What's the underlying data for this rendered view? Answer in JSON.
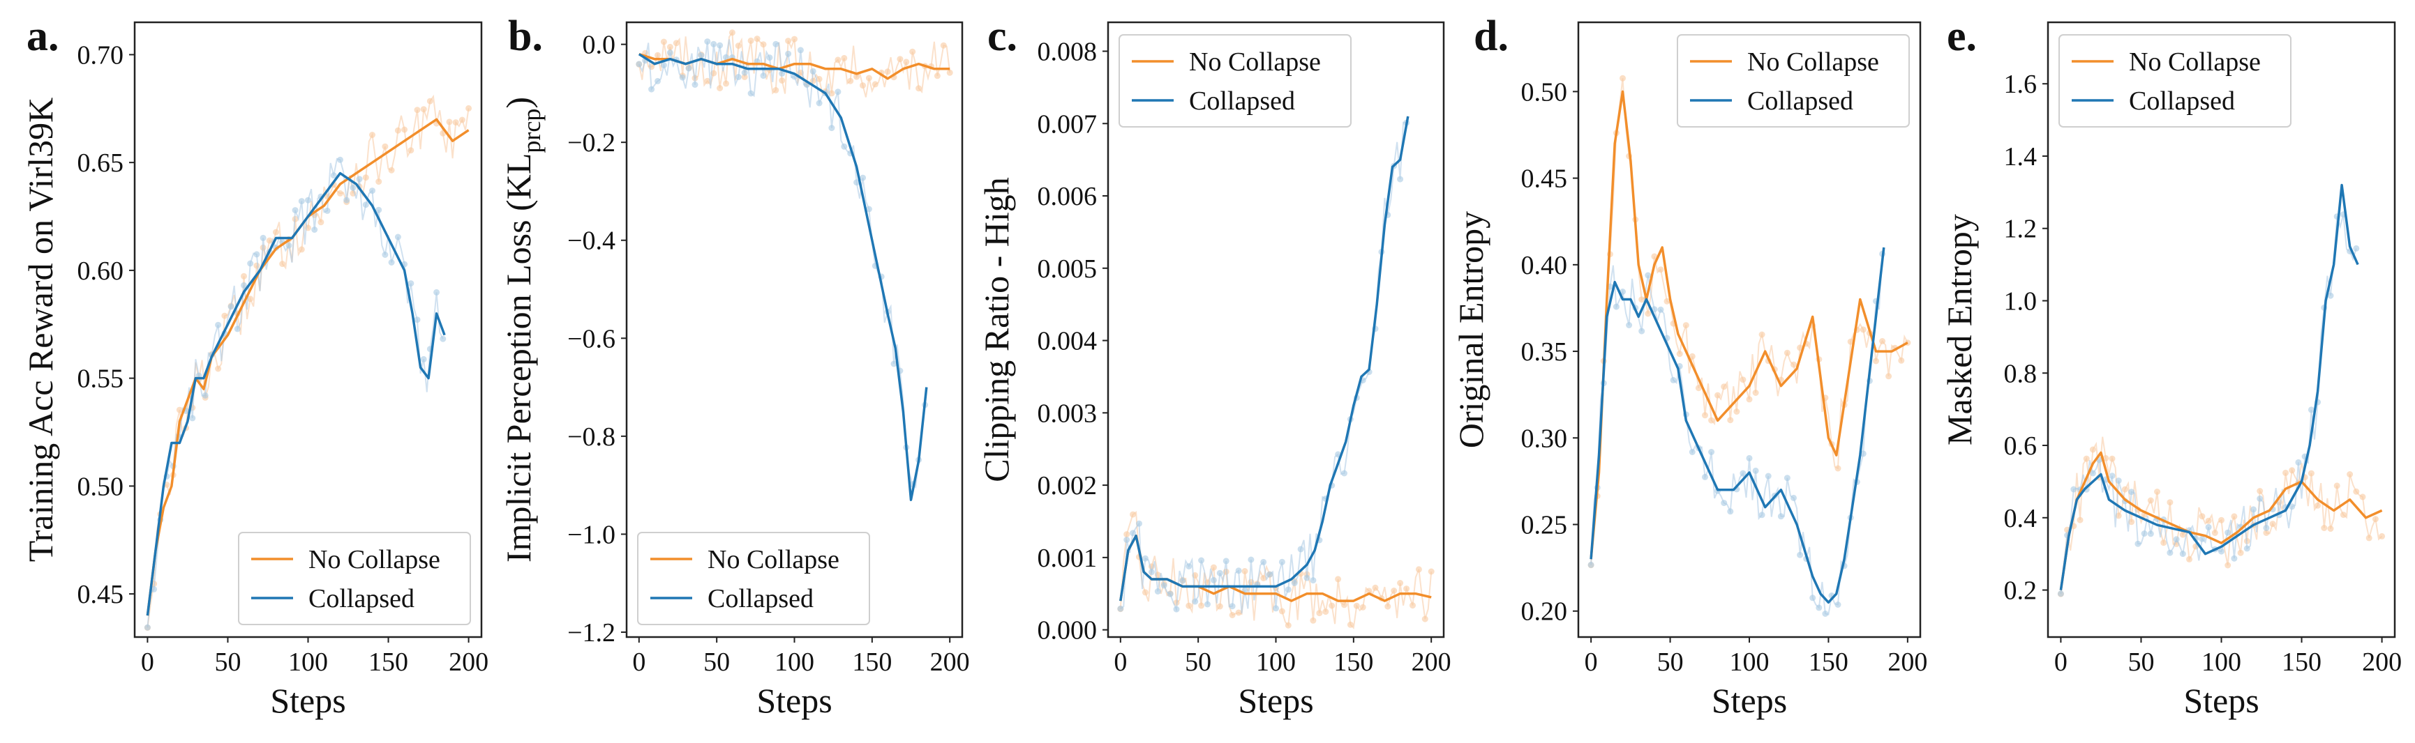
{
  "figure": {
    "panels": [
      "a.",
      "b.",
      "c.",
      "d.",
      "e."
    ]
  },
  "colors": {
    "no_collapse": "#F28E2B",
    "collapsed": "#1F77B4",
    "raw_no_collapse": "#F8C9A0",
    "raw_collapsed": "#A9C9E3"
  },
  "chart_data": [
    {
      "type": "line",
      "letter": "a.",
      "xlabel": "Steps",
      "ylabel": "Training Acc Reward on Virl39K",
      "xlim": [
        -8,
        208
      ],
      "ylim": [
        0.43,
        0.715
      ],
      "xticks": [
        0,
        50,
        100,
        150,
        200
      ],
      "xtick_labels": [
        "0",
        "50",
        "100",
        "150",
        "200"
      ],
      "yticks": [
        0.45,
        0.5,
        0.55,
        0.6,
        0.65,
        0.7
      ],
      "ytick_labels": [
        "0.45",
        "0.50",
        "0.55",
        "0.60",
        "0.65",
        "0.70"
      ],
      "legend_position": "lower-right",
      "series": [
        {
          "name": "No Collapse",
          "color": "#F28E2B",
          "x": [
            0,
            5,
            10,
            15,
            20,
            25,
            30,
            35,
            40,
            50,
            60,
            70,
            80,
            90,
            100,
            110,
            120,
            130,
            140,
            150,
            160,
            170,
            180,
            190,
            200
          ],
          "y": [
            0.44,
            0.47,
            0.49,
            0.5,
            0.53,
            0.54,
            0.55,
            0.545,
            0.56,
            0.57,
            0.585,
            0.6,
            0.61,
            0.615,
            0.625,
            0.63,
            0.64,
            0.645,
            0.65,
            0.655,
            0.66,
            0.665,
            0.67,
            0.66,
            0.665
          ]
        },
        {
          "name": "Collapsed",
          "color": "#1F77B4",
          "x": [
            0,
            5,
            10,
            15,
            20,
            25,
            30,
            35,
            40,
            50,
            60,
            70,
            80,
            90,
            100,
            110,
            120,
            130,
            140,
            150,
            160,
            165,
            170,
            175,
            180,
            185
          ],
          "y": [
            0.44,
            0.47,
            0.5,
            0.52,
            0.52,
            0.53,
            0.55,
            0.55,
            0.56,
            0.575,
            0.59,
            0.6,
            0.615,
            0.615,
            0.625,
            0.635,
            0.645,
            0.64,
            0.63,
            0.615,
            0.6,
            0.58,
            0.555,
            0.55,
            0.58,
            0.57
          ]
        }
      ]
    },
    {
      "type": "line",
      "letter": "b.",
      "xlabel": "Steps",
      "ylabel": "Implicit Perception Loss (KL",
      "ylabel_sub": "prcp",
      "ylabel_end": ")",
      "xlim": [
        -8,
        208
      ],
      "ylim": [
        -1.21,
        0.045
      ],
      "xticks": [
        0,
        50,
        100,
        150,
        200
      ],
      "xtick_labels": [
        "0",
        "50",
        "100",
        "150",
        "200"
      ],
      "yticks": [
        0.0,
        -0.2,
        -0.4,
        -0.6,
        -0.8,
        -1.0,
        -1.2
      ],
      "ytick_labels": [
        "0.0",
        "−0.2",
        "−0.4",
        "−0.6",
        "−0.8",
        "−1.0",
        "−1.2"
      ],
      "legend_position": "lower-left",
      "series": [
        {
          "name": "No Collapse",
          "color": "#F28E2B",
          "x": [
            0,
            10,
            20,
            30,
            40,
            50,
            60,
            70,
            80,
            90,
            100,
            110,
            120,
            130,
            140,
            150,
            160,
            170,
            180,
            190,
            200
          ],
          "y": [
            -0.02,
            -0.03,
            -0.03,
            -0.04,
            -0.03,
            -0.04,
            -0.03,
            -0.04,
            -0.04,
            -0.05,
            -0.04,
            -0.04,
            -0.05,
            -0.05,
            -0.06,
            -0.05,
            -0.07,
            -0.05,
            -0.04,
            -0.05,
            -0.05
          ]
        },
        {
          "name": "Collapsed",
          "color": "#1F77B4",
          "x": [
            0,
            10,
            20,
            30,
            40,
            50,
            60,
            70,
            80,
            90,
            100,
            110,
            120,
            130,
            140,
            150,
            160,
            165,
            170,
            175,
            180,
            185
          ],
          "y": [
            -0.02,
            -0.04,
            -0.03,
            -0.04,
            -0.03,
            -0.04,
            -0.04,
            -0.05,
            -0.05,
            -0.05,
            -0.06,
            -0.08,
            -0.1,
            -0.15,
            -0.25,
            -0.4,
            -0.55,
            -0.62,
            -0.75,
            -0.93,
            -0.85,
            -0.7
          ]
        }
      ]
    },
    {
      "type": "line",
      "letter": "c.",
      "xlabel": "Steps",
      "ylabel": "Clipping Ratio - High",
      "xlim": [
        -8,
        208
      ],
      "ylim": [
        -0.0001,
        0.0084
      ],
      "xticks": [
        0,
        50,
        100,
        150,
        200
      ],
      "xtick_labels": [
        "0",
        "50",
        "100",
        "150",
        "200"
      ],
      "yticks": [
        0.0,
        0.001,
        0.002,
        0.003,
        0.004,
        0.005,
        0.006,
        0.007,
        0.008
      ],
      "ytick_labels": [
        "0.000",
        "0.001",
        "0.002",
        "0.003",
        "0.004",
        "0.005",
        "0.006",
        "0.007",
        "0.008"
      ],
      "legend_position": "upper-left",
      "series": [
        {
          "name": "No Collapse",
          "color": "#F28E2B",
          "x": [
            0,
            5,
            10,
            15,
            20,
            30,
            40,
            50,
            60,
            70,
            80,
            90,
            100,
            110,
            120,
            130,
            140,
            150,
            160,
            170,
            180,
            190,
            200
          ],
          "y": [
            0.0004,
            0.0011,
            0.0013,
            0.0008,
            0.0007,
            0.0007,
            0.0006,
            0.0006,
            0.0005,
            0.0006,
            0.0005,
            0.0005,
            0.0005,
            0.0004,
            0.0005,
            0.0005,
            0.0004,
            0.0004,
            0.0005,
            0.0004,
            0.0005,
            0.0005,
            0.00045
          ]
        },
        {
          "name": "Collapsed",
          "color": "#1F77B4",
          "x": [
            0,
            5,
            10,
            15,
            20,
            30,
            40,
            50,
            60,
            70,
            80,
            90,
            100,
            110,
            120,
            125,
            130,
            135,
            140,
            145,
            150,
            155,
            160,
            165,
            170,
            175,
            180,
            185
          ],
          "y": [
            0.0004,
            0.0011,
            0.0013,
            0.0008,
            0.0007,
            0.0007,
            0.0006,
            0.0006,
            0.0006,
            0.0006,
            0.0006,
            0.0006,
            0.0006,
            0.0007,
            0.0009,
            0.0011,
            0.0015,
            0.002,
            0.0023,
            0.0026,
            0.0031,
            0.0035,
            0.0036,
            0.0045,
            0.0056,
            0.0064,
            0.0065,
            0.0071
          ]
        }
      ]
    },
    {
      "type": "line",
      "letter": "d.",
      "xlabel": "Steps",
      "ylabel": "Original Entropy",
      "xlim": [
        -8,
        208
      ],
      "ylim": [
        0.185,
        0.54
      ],
      "xticks": [
        0,
        50,
        100,
        150,
        200
      ],
      "xtick_labels": [
        "0",
        "50",
        "100",
        "150",
        "200"
      ],
      "yticks": [
        0.2,
        0.25,
        0.3,
        0.35,
        0.4,
        0.45,
        0.5
      ],
      "ytick_labels": [
        "0.20",
        "0.25",
        "0.30",
        "0.35",
        "0.40",
        "0.45",
        "0.50"
      ],
      "legend_position": "upper-right",
      "series": [
        {
          "name": "No Collapse",
          "color": "#F28E2B",
          "x": [
            0,
            5,
            10,
            15,
            20,
            25,
            30,
            35,
            40,
            45,
            50,
            55,
            60,
            70,
            80,
            90,
            100,
            110,
            120,
            130,
            140,
            150,
            155,
            160,
            170,
            180,
            190,
            200
          ],
          "y": [
            0.23,
            0.28,
            0.38,
            0.47,
            0.5,
            0.46,
            0.4,
            0.38,
            0.4,
            0.41,
            0.38,
            0.36,
            0.35,
            0.33,
            0.31,
            0.32,
            0.33,
            0.35,
            0.33,
            0.34,
            0.37,
            0.3,
            0.29,
            0.32,
            0.38,
            0.35,
            0.35,
            0.355
          ]
        },
        {
          "name": "Collapsed",
          "color": "#1F77B4",
          "x": [
            0,
            5,
            10,
            15,
            20,
            25,
            30,
            35,
            40,
            45,
            50,
            55,
            60,
            70,
            80,
            90,
            100,
            110,
            120,
            130,
            140,
            145,
            150,
            155,
            160,
            165,
            170,
            175,
            180,
            185
          ],
          "y": [
            0.23,
            0.29,
            0.37,
            0.39,
            0.38,
            0.38,
            0.37,
            0.38,
            0.37,
            0.36,
            0.35,
            0.34,
            0.31,
            0.29,
            0.27,
            0.27,
            0.28,
            0.26,
            0.27,
            0.25,
            0.22,
            0.21,
            0.205,
            0.21,
            0.23,
            0.26,
            0.29,
            0.33,
            0.37,
            0.41
          ]
        }
      ]
    },
    {
      "type": "line",
      "letter": "e.",
      "xlabel": "Steps",
      "ylabel": "Masked Entropy",
      "xlim": [
        -8,
        208
      ],
      "ylim": [
        0.07,
        1.77
      ],
      "xticks": [
        0,
        50,
        100,
        150,
        200
      ],
      "xtick_labels": [
        "0",
        "50",
        "100",
        "150",
        "200"
      ],
      "yticks": [
        0.2,
        0.4,
        0.6,
        0.8,
        1.0,
        1.2,
        1.4,
        1.6
      ],
      "ytick_labels": [
        "0.2",
        "0.4",
        "0.6",
        "0.8",
        "1.0",
        "1.2",
        "1.4",
        "1.6"
      ],
      "legend_position": "upper-left",
      "series": [
        {
          "name": "No Collapse",
          "color": "#F28E2B",
          "x": [
            0,
            5,
            10,
            15,
            20,
            25,
            30,
            40,
            50,
            60,
            70,
            80,
            90,
            100,
            110,
            120,
            130,
            140,
            150,
            160,
            170,
            180,
            190,
            200
          ],
          "y": [
            0.2,
            0.35,
            0.45,
            0.5,
            0.55,
            0.58,
            0.5,
            0.45,
            0.42,
            0.4,
            0.38,
            0.36,
            0.35,
            0.33,
            0.36,
            0.4,
            0.42,
            0.48,
            0.5,
            0.45,
            0.42,
            0.45,
            0.4,
            0.42
          ]
        },
        {
          "name": "Collapsed",
          "color": "#1F77B4",
          "x": [
            0,
            5,
            10,
            15,
            20,
            25,
            30,
            40,
            50,
            60,
            70,
            80,
            90,
            100,
            110,
            120,
            130,
            140,
            150,
            155,
            160,
            165,
            170,
            175,
            180,
            185
          ],
          "y": [
            0.2,
            0.35,
            0.45,
            0.48,
            0.5,
            0.52,
            0.45,
            0.42,
            0.4,
            0.38,
            0.37,
            0.36,
            0.3,
            0.32,
            0.35,
            0.38,
            0.4,
            0.42,
            0.5,
            0.6,
            0.75,
            1.0,
            1.1,
            1.32,
            1.15,
            1.1
          ]
        }
      ]
    }
  ]
}
